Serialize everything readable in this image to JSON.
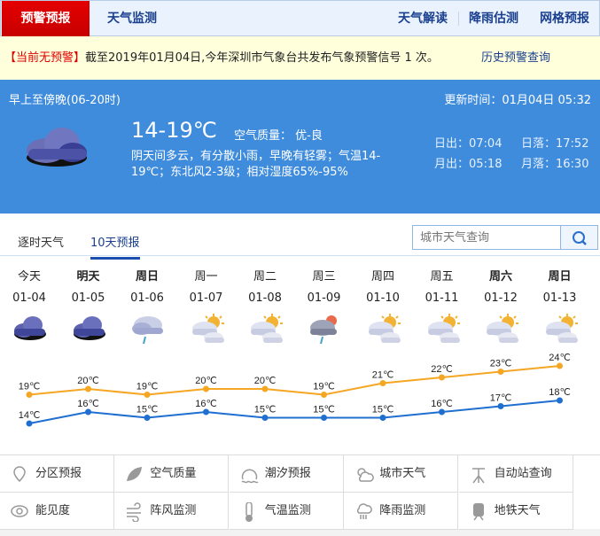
{
  "nav": {
    "tabs": [
      "预警预报",
      "天气监测"
    ],
    "right_links": [
      "天气解读",
      "降雨估测",
      "网格预报"
    ],
    "active_color": "#d40000"
  },
  "warning": {
    "status": "【当前无预警】",
    "text": "截至2019年01月04日,今年深圳市气象台共发布气象预警信号 1 次。",
    "history_link": "历史预警查询"
  },
  "current": {
    "period": "早上至傍晚(06-20时)",
    "updated": "更新时间：01月04日 05:32",
    "temp": "14-19℃",
    "aqi": "空气质量： 优-良",
    "desc_line1": "阴天间多云，有分散小雨，早晚有轻雾；气温14-",
    "desc_line2": "19℃；东北风2-3级；相对湿度65%-95%",
    "sunrise": "日出：07:04",
    "sunset": "日落：17:52",
    "moonrise": "月出：05:18",
    "moonset": "月落：16:30",
    "icon": "overcast-cloud-icon"
  },
  "tabs": {
    "hourly": "逐时天气",
    "ten_day": "10天预报"
  },
  "search": {
    "placeholder": "城市天气查询"
  },
  "forecast": [
    {
      "day": "今天",
      "date": "01-04",
      "icon": "overcast",
      "high": 19,
      "low": 14,
      "bold": false
    },
    {
      "day": "明天",
      "date": "01-05",
      "icon": "overcast",
      "high": 20,
      "low": 16,
      "bold": true
    },
    {
      "day": "周日",
      "date": "01-06",
      "icon": "light-rain",
      "high": 19,
      "low": 15,
      "bold": true
    },
    {
      "day": "周一",
      "date": "01-07",
      "icon": "partly-cloudy",
      "high": 20,
      "low": 16,
      "bold": false
    },
    {
      "day": "周二",
      "date": "01-08",
      "icon": "partly-cloudy",
      "high": 20,
      "low": 15,
      "bold": false
    },
    {
      "day": "周三",
      "date": "01-09",
      "icon": "shower",
      "high": 19,
      "low": 15,
      "bold": false
    },
    {
      "day": "周四",
      "date": "01-10",
      "icon": "partly-cloudy",
      "high": 21,
      "low": 15,
      "bold": false
    },
    {
      "day": "周五",
      "date": "01-11",
      "icon": "partly-cloudy",
      "high": 22,
      "low": 16,
      "bold": false
    },
    {
      "day": "周六",
      "date": "01-12",
      "icon": "partly-cloudy",
      "high": 23,
      "low": 17,
      "bold": true
    },
    {
      "day": "周日",
      "date": "01-13",
      "icon": "partly-cloudy",
      "high": 24,
      "low": 18,
      "bold": true
    }
  ],
  "chart_data": {
    "type": "line",
    "categories": [
      "01-04",
      "01-05",
      "01-06",
      "01-07",
      "01-08",
      "01-09",
      "01-10",
      "01-11",
      "01-12",
      "01-13"
    ],
    "series": [
      {
        "values": [
          19,
          20,
          19,
          20,
          20,
          19,
          21,
          22,
          23,
          24
        ],
        "color": "#f5a623"
      },
      {
        "values": [
          14,
          16,
          15,
          16,
          15,
          15,
          15,
          16,
          17,
          18
        ],
        "color": "#1f6fd0"
      }
    ],
    "unit": "℃"
  },
  "links": [
    {
      "label": "分区预报",
      "icon": "map-pin-icon"
    },
    {
      "label": "空气质量",
      "icon": "leaf-icon"
    },
    {
      "label": "潮汐预报",
      "icon": "wave-icon"
    },
    {
      "label": "城市天气",
      "icon": "sun-cloud-icon"
    },
    {
      "label": "自动站查询",
      "icon": "station-icon"
    },
    {
      "label": "能见度",
      "icon": "eye-icon"
    },
    {
      "label": "阵风监测",
      "icon": "wind-icon"
    },
    {
      "label": "气温监测",
      "icon": "thermometer-icon"
    },
    {
      "label": "降雨监测",
      "icon": "rain-cloud-icon"
    },
    {
      "label": "地铁天气",
      "icon": "train-icon"
    }
  ]
}
